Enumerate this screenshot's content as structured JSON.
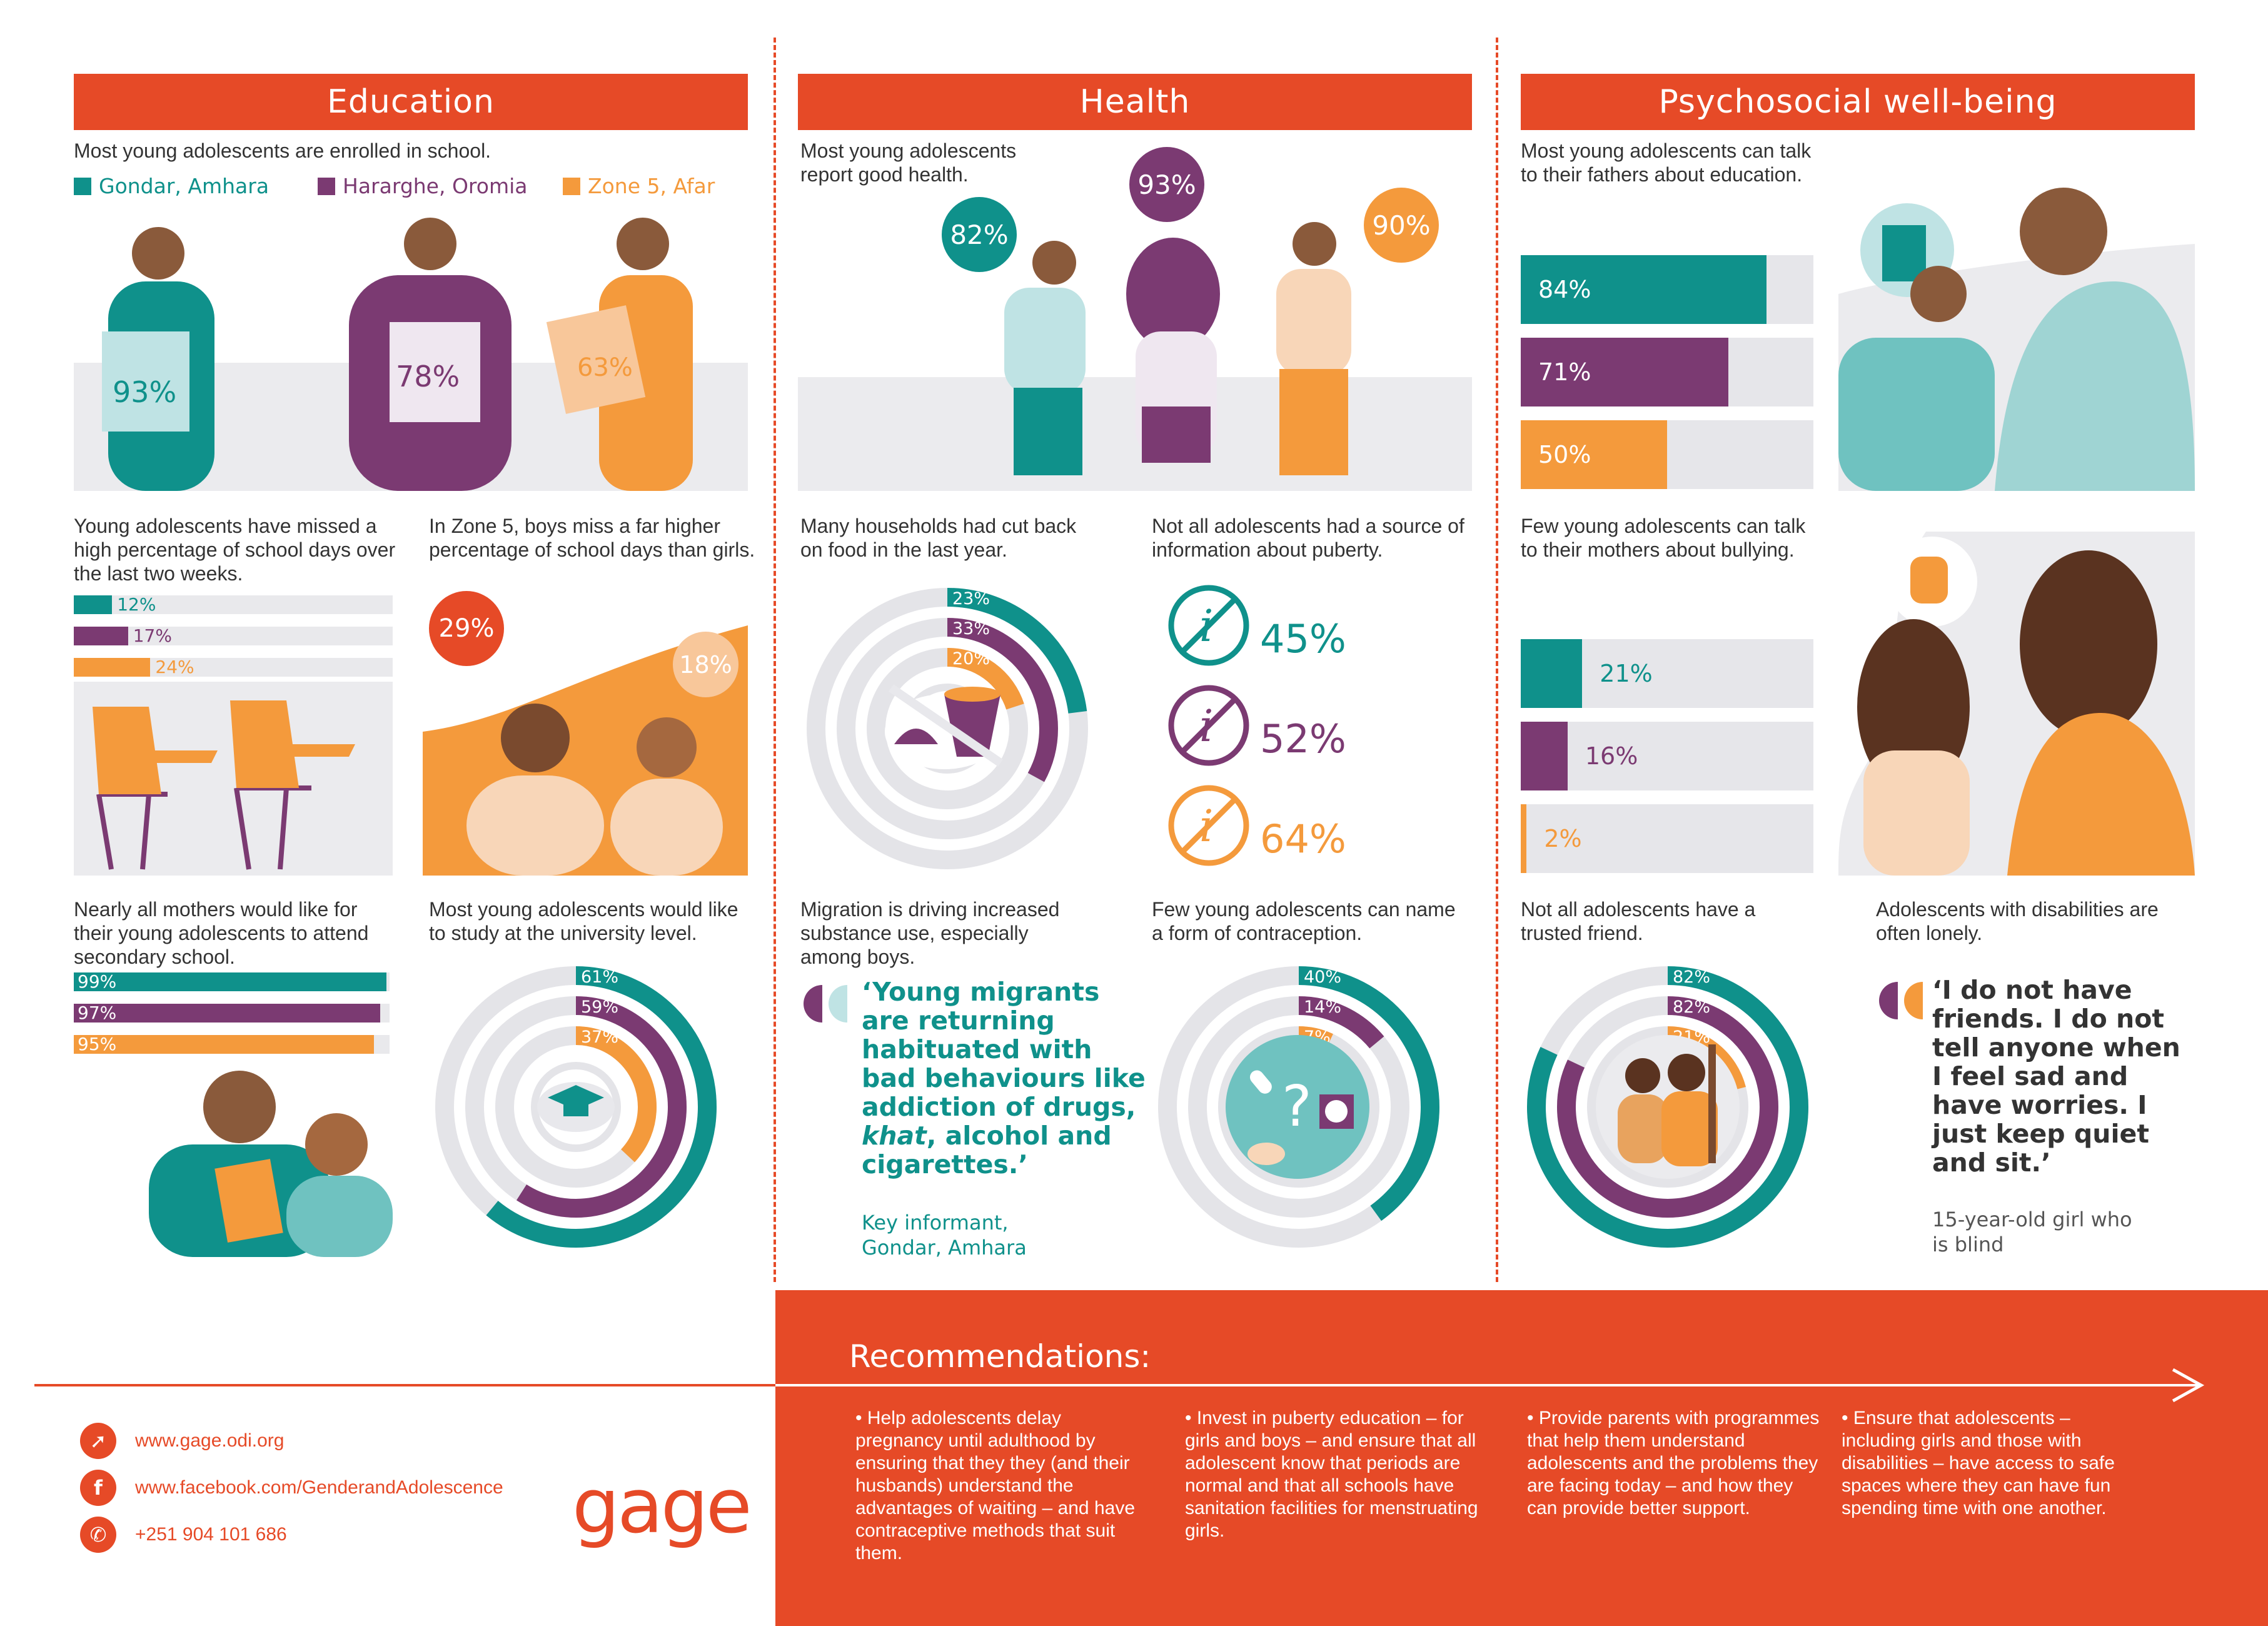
{
  "colors": {
    "teal": "#0f918b",
    "purple": "#7b3a72",
    "orange": "#f49a3c",
    "red": "#e64a27",
    "grey": "#ebebee"
  },
  "education": {
    "title": "Education",
    "enrolled_text": "Most young adolescents are enrolled in school.",
    "legend": [
      "Gondar, Amhara",
      "Hararghe, Oromia",
      "Zone 5, Afar"
    ],
    "enrolled_pcts": [
      "93%",
      "78%",
      "63%"
    ],
    "missed_text": "Young adolescents have missed a high percentage of school days over the last two weeks.",
    "missed": [
      {
        "label": "12%",
        "value": 0.12
      },
      {
        "label": "17%",
        "value": 0.17
      },
      {
        "label": "24%",
        "value": 0.24
      }
    ],
    "zone5_text": "In Zone 5,  boys miss a far higher percentage of school  days than girls.",
    "zone5_boys": "29%",
    "zone5_girls": "18%",
    "mothers_text": "Nearly all mothers would like for their young adolescents to attend secondary school.",
    "mothers": [
      {
        "label": "99%",
        "value": 0.99
      },
      {
        "label": "97%",
        "value": 0.97
      },
      {
        "label": "95%",
        "value": 0.95
      }
    ],
    "university_text": "Most young adolescents would like to study at the university level.",
    "university": [
      {
        "label": "61%",
        "value": 0.61
      },
      {
        "label": "59%",
        "value": 0.59
      },
      {
        "label": "37%",
        "value": 0.37
      }
    ]
  },
  "health": {
    "title": "Health",
    "good_health_text": "Most young adolescents report good health.",
    "good_health_pcts": [
      "82%",
      "93%",
      "90%"
    ],
    "food_text": "Many households had cut back on food in the last year.",
    "food": [
      {
        "label": "23%",
        "value": 0.23
      },
      {
        "label": "33%",
        "value": 0.33
      },
      {
        "label": "20%",
        "value": 0.2
      }
    ],
    "puberty_text": "Not all adolescents had a source of information about puberty.",
    "puberty_pcts": [
      "45%",
      "52%",
      "64%"
    ],
    "migration_text": "Migration is driving increased substance use, especially among boys.",
    "migration_quote_parts": [
      "‘Young migrants are returning habituated with bad behaviours like addiction of drugs, ",
      "khat",
      ", alcohol and cigarettes.’"
    ],
    "migration_attribution": "Key informant, Gondar, Amhara",
    "contraception_text": "Few young adolescents can name a form of contraception.",
    "contraception": [
      {
        "label": "40%",
        "value": 0.4
      },
      {
        "label": "14%",
        "value": 0.14
      },
      {
        "label": "7%",
        "value": 0.07
      }
    ]
  },
  "psychosocial": {
    "title": "Psychosocial well-being",
    "fathers_text": "Most young adolescents can talk to their fathers about education.",
    "fathers": [
      {
        "label": "84%",
        "value": 0.84
      },
      {
        "label": "71%",
        "value": 0.71
      },
      {
        "label": "50%",
        "value": 0.5
      }
    ],
    "mothers_text": "Few young adolescents can talk to their mothers about bullying.",
    "mothers_bullying": [
      {
        "label": "21%",
        "value": 0.21
      },
      {
        "label": "16%",
        "value": 0.16
      },
      {
        "label": "2%",
        "value": 0.02
      }
    ],
    "friend_text": "Not all adolescents have a trusted friend.",
    "friend": [
      {
        "label": "82%",
        "value": 0.82
      },
      {
        "label": "82%",
        "value": 0.82
      },
      {
        "label": "21%",
        "value": 0.21
      }
    ],
    "lonely_text": "Adolescents with disabilities are often lonely.",
    "lonely_quote": "‘I do not have friends. I do not tell anyone when I feel sad and have worries. I just keep quiet and sit.’",
    "lonely_attribution": "15-year-old girl who is blind"
  },
  "recommendations": {
    "title": "Recommendations:",
    "items": [
      "• Help adolescents delay pregnancy until adulthood by ensuring that they they (and their husbands) understand the advantages of waiting – and have contraceptive methods that suit them.",
      "• Invest in puberty education – for girls and boys – and ensure that all adolescent know that periods are normal and that all schools have sanitation facilities for menstruating girls.",
      "• Provide parents with programmes that help them understand adolescents and the problems they are facing today – and how they can provide better support.",
      "• Ensure that adolescents – including girls and those with disabilities – have access to safe spaces where they can have fun spending time with one another."
    ]
  },
  "contact": {
    "website": "www.gage.odi.org",
    "facebook": "www.facebook.com/GenderandAdolescence",
    "phone": "+251 904 101 686",
    "logo": "gage"
  },
  "chart_data": [
    {
      "type": "bar",
      "title": "",
      "categories": [
        "Gondar, Amhara",
        "Hararghe, Oromia",
        "Zone 5, Afar"
      ],
      "series": [
        {
          "values": [
            93,
            78,
            63
          ]
        }
      ],
      "note": "enrolled in school"
    },
    {
      "type": "bar",
      "categories": [
        "Gondar, Amhara",
        "Hararghe, Oromia",
        "Zone 5, Afar"
      ],
      "series": [
        {
          "values": [
            12,
            17,
            24
          ]
        }
      ]
    },
    {
      "type": "bar",
      "categories": [
        "boys",
        "girls"
      ],
      "series": [
        {
          "values": [
            29,
            18
          ]
        }
      ]
    },
    {
      "type": "bar",
      "categories": [
        "Gondar, Amhara",
        "Hararghe, Oromia",
        "Zone 5, Afar"
      ],
      "series": [
        {
          "values": [
            99,
            97,
            95
          ]
        }
      ]
    },
    {
      "type": "pie",
      "categories": [
        "Gondar, Amhara",
        "Hararghe, Oromia",
        "Zone 5, Afar"
      ],
      "series": [
        {
          "values": [
            61,
            59,
            37
          ]
        }
      ]
    },
    {
      "type": "bar",
      "categories": [
        "Gondar, Amhara",
        "Hararghe, Oromia",
        "Zone 5, Afar"
      ],
      "series": [
        {
          "values": [
            82,
            93,
            90
          ]
        }
      ]
    },
    {
      "type": "pie",
      "categories": [
        "Gondar, Amhara",
        "Hararghe, Oromia",
        "Zone 5, Afar"
      ],
      "series": [
        {
          "values": [
            23,
            33,
            20
          ]
        }
      ]
    },
    {
      "type": "bar",
      "categories": [
        "Gondar, Amhara",
        "Hararghe, Oromia",
        "Zone 5, Afar"
      ],
      "series": [
        {
          "values": [
            45,
            52,
            64
          ]
        }
      ]
    },
    {
      "type": "pie",
      "categories": [
        "Gondar, Amhara",
        "Hararghe, Oromia",
        "Zone 5, Afar"
      ],
      "series": [
        {
          "values": [
            40,
            14,
            7
          ]
        }
      ]
    },
    {
      "type": "bar",
      "categories": [
        "Gondar, Amhara",
        "Hararghe, Oromia",
        "Zone 5, Afar"
      ],
      "series": [
        {
          "values": [
            84,
            71,
            50
          ]
        }
      ]
    },
    {
      "type": "bar",
      "categories": [
        "Gondar, Amhara",
        "Hararghe, Oromia",
        "Zone 5, Afar"
      ],
      "series": [
        {
          "values": [
            21,
            16,
            2
          ]
        }
      ]
    },
    {
      "type": "pie",
      "categories": [
        "Gondar, Amhara",
        "Hararghe, Oromia",
        "Zone 5, Afar"
      ],
      "series": [
        {
          "values": [
            82,
            82,
            21
          ]
        }
      ]
    }
  ]
}
